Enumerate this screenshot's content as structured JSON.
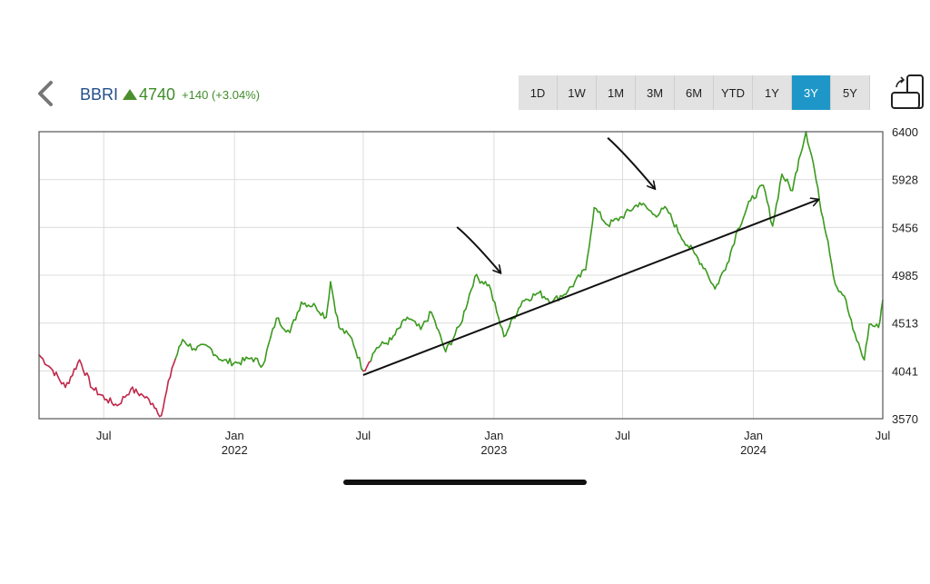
{
  "header": {
    "symbol": "BBRI",
    "price": "4740",
    "change": "+140 (+3.04%)",
    "back_icon": "chevron-left-icon",
    "rotate_icon": "device-rotate-icon"
  },
  "ranges": [
    {
      "label": "1D",
      "active": false
    },
    {
      "label": "1W",
      "active": false
    },
    {
      "label": "1M",
      "active": false
    },
    {
      "label": "3M",
      "active": false
    },
    {
      "label": "6M",
      "active": false
    },
    {
      "label": "YTD",
      "active": false
    },
    {
      "label": "1Y",
      "active": false
    },
    {
      "label": "3Y",
      "active": true
    },
    {
      "label": "5Y",
      "active": false
    }
  ],
  "colors": {
    "up": "#3c9a1f",
    "down": "#c0284a",
    "accent": "#1e97c8",
    "grid": "#dcdcdc"
  },
  "chart_data": {
    "type": "line",
    "title": "",
    "xlabel": "",
    "ylabel": "",
    "ylim": [
      3570,
      6400
    ],
    "xlim": [
      "2021-04-01",
      "2024-07-01"
    ],
    "y_ticks": [
      "6400",
      "5928",
      "5456",
      "4985",
      "4513",
      "4041",
      "3570"
    ],
    "x_ticks": [
      {
        "date": "2021-07-01",
        "label": "Jul",
        "year": ""
      },
      {
        "date": "2022-01-01",
        "label": "Jan",
        "year": "2022"
      },
      {
        "date": "2022-07-01",
        "label": "Jul",
        "year": ""
      },
      {
        "date": "2023-01-01",
        "label": "Jan",
        "year": "2023"
      },
      {
        "date": "2023-07-01",
        "label": "Jul",
        "year": ""
      },
      {
        "date": "2024-01-01",
        "label": "Jan",
        "year": "2024"
      },
      {
        "date": "2024-07-01",
        "label": "Jul",
        "year": ""
      }
    ],
    "baseline": 4600,
    "series": [
      {
        "points": [
          [
            "2021-04-01",
            4200
          ],
          [
            "2021-04-20",
            4050
          ],
          [
            "2021-05-08",
            3880
          ],
          [
            "2021-05-28",
            4150
          ],
          [
            "2021-06-15",
            3870
          ],
          [
            "2021-07-05",
            3760
          ],
          [
            "2021-07-20",
            3700
          ],
          [
            "2021-08-08",
            3860
          ],
          [
            "2021-08-25",
            3800
          ],
          [
            "2021-09-08",
            3720
          ],
          [
            "2021-09-20",
            3600
          ],
          [
            "2021-10-05",
            4070
          ],
          [
            "2021-10-20",
            4350
          ],
          [
            "2021-11-05",
            4260
          ],
          [
            "2021-11-25",
            4280
          ],
          [
            "2021-12-15",
            4140
          ],
          [
            "2022-01-05",
            4120
          ],
          [
            "2022-01-25",
            4170
          ],
          [
            "2022-02-10",
            4100
          ],
          [
            "2022-03-01",
            4560
          ],
          [
            "2022-03-20",
            4420
          ],
          [
            "2022-04-05",
            4720
          ],
          [
            "2022-04-25",
            4680
          ],
          [
            "2022-05-10",
            4570
          ],
          [
            "2022-05-16",
            4920
          ],
          [
            "2022-05-28",
            4470
          ],
          [
            "2022-06-15",
            4360
          ],
          [
            "2022-07-01",
            4040
          ],
          [
            "2022-07-20",
            4270
          ],
          [
            "2022-08-10",
            4350
          ],
          [
            "2022-09-01",
            4570
          ],
          [
            "2022-09-20",
            4450
          ],
          [
            "2022-10-05",
            4620
          ],
          [
            "2022-10-25",
            4230
          ],
          [
            "2022-11-15",
            4500
          ],
          [
            "2022-12-05",
            4970
          ],
          [
            "2022-12-25",
            4890
          ],
          [
            "2023-01-05",
            4620
          ],
          [
            "2023-01-15",
            4380
          ],
          [
            "2023-02-10",
            4730
          ],
          [
            "2023-03-05",
            4810
          ],
          [
            "2023-03-25",
            4730
          ],
          [
            "2023-04-15",
            4830
          ],
          [
            "2023-05-10",
            5040
          ],
          [
            "2023-05-22",
            5650
          ],
          [
            "2023-06-10",
            5480
          ],
          [
            "2023-06-30",
            5560
          ],
          [
            "2023-07-25",
            5700
          ],
          [
            "2023-08-15",
            5580
          ],
          [
            "2023-09-01",
            5640
          ],
          [
            "2023-09-20",
            5380
          ],
          [
            "2023-10-10",
            5200
          ],
          [
            "2023-10-25",
            5050
          ],
          [
            "2023-11-08",
            4850
          ],
          [
            "2023-11-25",
            5100
          ],
          [
            "2023-12-10",
            5440
          ],
          [
            "2023-12-28",
            5720
          ],
          [
            "2024-01-15",
            5870
          ],
          [
            "2024-01-28",
            5470
          ],
          [
            "2024-02-10",
            5980
          ],
          [
            "2024-02-25",
            5820
          ],
          [
            "2024-03-05",
            6130
          ],
          [
            "2024-03-15",
            6400
          ],
          [
            "2024-03-25",
            6100
          ],
          [
            "2024-04-03",
            5720
          ],
          [
            "2024-04-15",
            5320
          ],
          [
            "2024-04-25",
            4900
          ],
          [
            "2024-05-08",
            4780
          ],
          [
            "2024-05-20",
            4450
          ],
          [
            "2024-06-05",
            4150
          ],
          [
            "2024-06-12",
            4500
          ],
          [
            "2024-06-25",
            4470
          ],
          [
            "2024-07-01",
            4740
          ]
        ]
      }
    ],
    "annotations": [
      {
        "type": "trendline",
        "from": [
          "2022-07-01",
          4000
        ],
        "to": [
          "2024-04-01",
          5730
        ]
      },
      {
        "type": "arrow",
        "from": [
          "2022-11-10",
          5460
        ],
        "to": [
          "2023-01-10",
          5010
        ]
      },
      {
        "type": "arrow",
        "from": [
          "2023-06-10",
          6340
        ],
        "to": [
          "2023-08-15",
          5840
        ]
      }
    ]
  }
}
